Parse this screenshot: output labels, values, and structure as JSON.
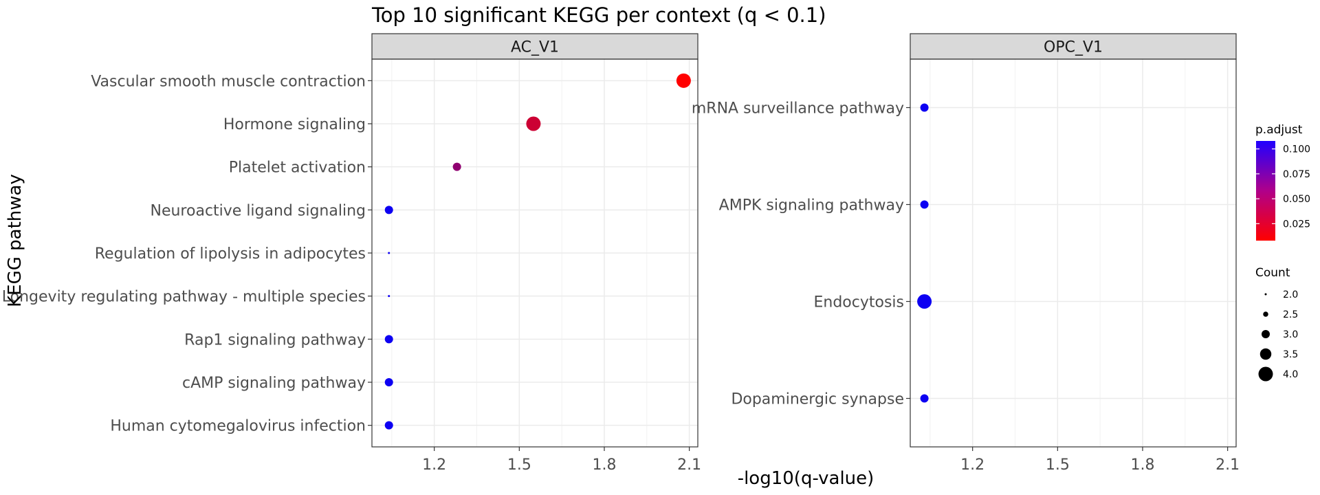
{
  "chart_data": {
    "type": "scatter",
    "title": "Top 10 significant KEGG per context (q < 0.1)",
    "xlabel": "-log10(q-value)",
    "ylabel": "KEGG pathway",
    "x_ticks": [
      1.2,
      1.5,
      1.8,
      2.1
    ],
    "x_tick_labels": [
      "1.2",
      "1.5",
      "1.8",
      "2.1"
    ],
    "xlim": [
      0.98,
      2.13
    ],
    "grid": true,
    "legend_position": "right",
    "facets": [
      {
        "name": "AC_V1",
        "pathways": [
          "Vascular smooth muscle contraction",
          "Hormone signaling",
          "Platelet activation",
          "Neuroactive ligand signaling",
          "Regulation of lipolysis in adipocytes",
          "Longevity regulating pathway - multiple species",
          "Rap1 signaling pathway",
          "cAMP signaling pathway",
          "Human cytomegalovirus infection"
        ],
        "points": [
          {
            "pathway": "Vascular smooth muscle contraction",
            "x": 2.08,
            "count": 4,
            "p_adjust": 0.008
          },
          {
            "pathway": "Hormone signaling",
            "x": 1.55,
            "count": 4,
            "p_adjust": 0.028
          },
          {
            "pathway": "Platelet activation",
            "x": 1.28,
            "count": 3,
            "p_adjust": 0.052
          },
          {
            "pathway": "Neuroactive ligand signaling",
            "x": 1.04,
            "count": 3,
            "p_adjust": 0.103
          },
          {
            "pathway": "Regulation of lipolysis in adipocytes",
            "x": 1.04,
            "count": 2,
            "p_adjust": 0.103
          },
          {
            "pathway": "Longevity regulating pathway - multiple species",
            "x": 1.04,
            "count": 2,
            "p_adjust": 0.103
          },
          {
            "pathway": "Rap1 signaling pathway",
            "x": 1.04,
            "count": 3,
            "p_adjust": 0.103
          },
          {
            "pathway": "cAMP signaling pathway",
            "x": 1.04,
            "count": 3,
            "p_adjust": 0.103
          },
          {
            "pathway": "Human cytomegalovirus infection",
            "x": 1.04,
            "count": 3,
            "p_adjust": 0.103
          }
        ]
      },
      {
        "name": "OPC_V1",
        "pathways": [
          "mRNA surveillance pathway",
          "AMPK signaling pathway",
          "Endocytosis",
          "Dopaminergic synapse"
        ],
        "points": [
          {
            "pathway": "mRNA surveillance pathway",
            "x": 1.03,
            "count": 3,
            "p_adjust": 0.103
          },
          {
            "pathway": "AMPK signaling pathway",
            "x": 1.03,
            "count": 3,
            "p_adjust": 0.103
          },
          {
            "pathway": "Endocytosis",
            "x": 1.03,
            "count": 4,
            "p_adjust": 0.103
          },
          {
            "pathway": "Dopaminergic synapse",
            "x": 1.03,
            "count": 3,
            "p_adjust": 0.103
          }
        ]
      }
    ],
    "color_legend": {
      "title": "p.adjust",
      "range": [
        0.008,
        0.108
      ],
      "ticks": [
        0.025,
        0.05,
        0.075,
        0.1
      ],
      "tick_labels": [
        "0.025",
        "0.050",
        "0.075",
        "0.100"
      ],
      "low_color": "#FF0000",
      "high_color": "#0000FF"
    },
    "size_legend": {
      "title": "Count",
      "values": [
        2,
        2.5,
        3,
        3.5,
        4
      ],
      "labels": [
        "2.0",
        "2.5",
        "3.0",
        "3.5",
        "4.0"
      ]
    }
  }
}
